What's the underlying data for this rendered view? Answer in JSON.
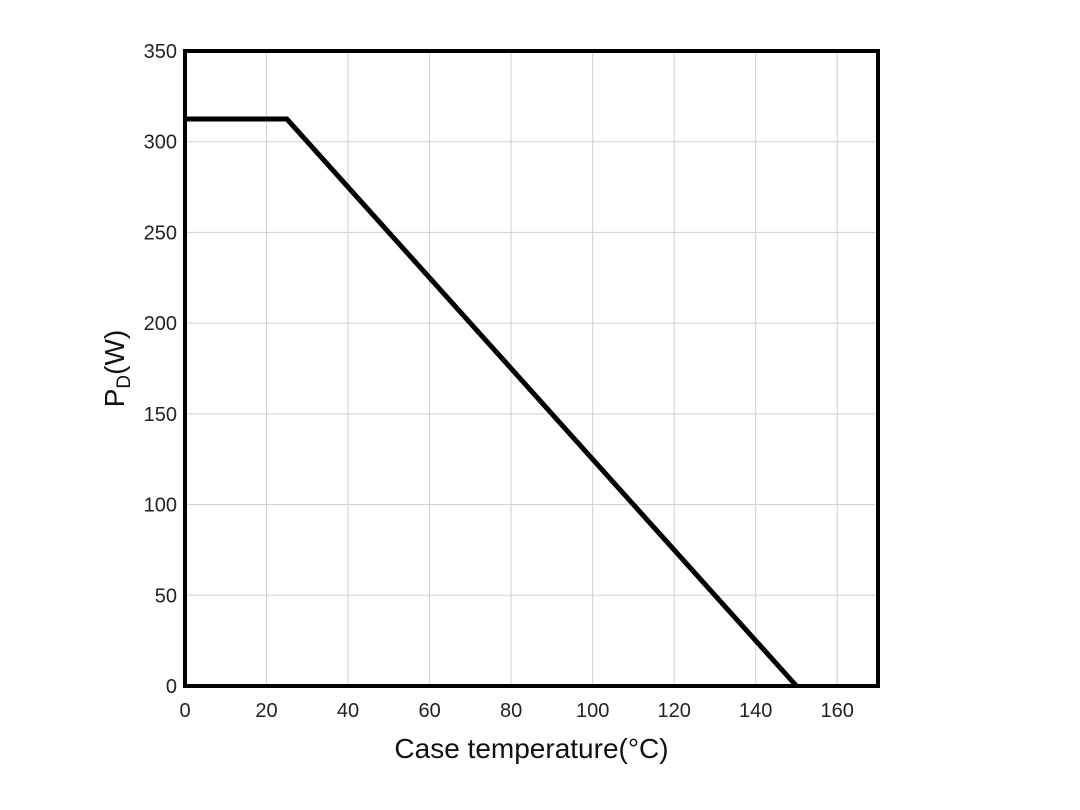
{
  "chart_data": {
    "type": "line",
    "title": "",
    "xlabel": "Case temperature(°C)",
    "ylabel_main": "P",
    "ylabel_sub": "D",
    "ylabel_unit": "(W)",
    "xlim": [
      0,
      170
    ],
    "ylim": [
      0,
      350
    ],
    "xticks": [
      "0",
      "20",
      "40",
      "60",
      "80",
      "100",
      "120",
      "140",
      "160"
    ],
    "yticks": [
      "0",
      "50",
      "100",
      "150",
      "200",
      "250",
      "300",
      "350"
    ],
    "xtick_values": [
      0,
      20,
      40,
      60,
      80,
      100,
      120,
      140,
      160
    ],
    "ytick_values": [
      0,
      50,
      100,
      150,
      200,
      250,
      300,
      350
    ],
    "grid": true,
    "series": [
      {
        "x": [
          0,
          25,
          150
        ],
        "y": [
          312.5,
          312.5,
          0
        ],
        "color": "#000000"
      }
    ]
  }
}
